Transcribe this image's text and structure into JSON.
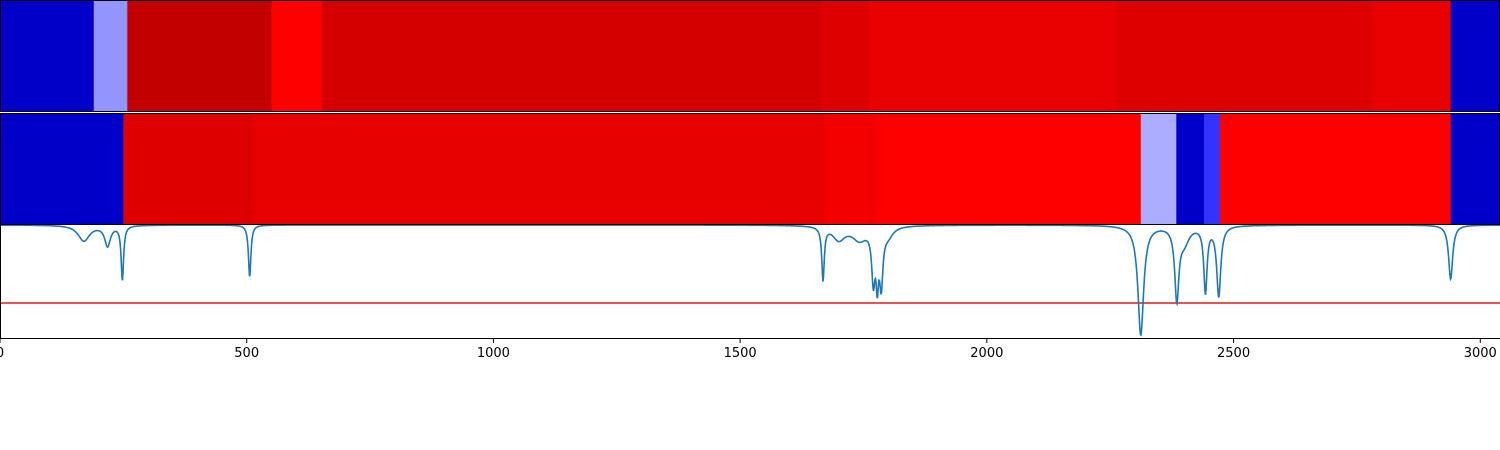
{
  "chart_data": [
    {
      "type": "heatmap",
      "xlim": [
        0,
        3040
      ],
      "colormap": "seismic",
      "value_range": [
        -1,
        1
      ],
      "segments": [
        {
          "x0": 0,
          "x1": 190,
          "value": -0.65
        },
        {
          "x0": 190,
          "x1": 258,
          "value": -0.21
        },
        {
          "x0": 258,
          "x1": 550,
          "value": 0.74
        },
        {
          "x0": 550,
          "x1": 652,
          "value": 0.5
        },
        {
          "x0": 652,
          "x1": 1665,
          "value": 0.67
        },
        {
          "x0": 1665,
          "x1": 1762,
          "value": 0.63
        },
        {
          "x0": 1762,
          "x1": 2262,
          "value": 0.59
        },
        {
          "x0": 2262,
          "x1": 2780,
          "value": 0.63
        },
        {
          "x0": 2780,
          "x1": 2940,
          "value": 0.59
        },
        {
          "x0": 2940,
          "x1": 3040,
          "value": -0.65
        }
      ]
    },
    {
      "type": "heatmap",
      "xlim": [
        0,
        3040
      ],
      "colormap": "seismic",
      "value_range": [
        -1,
        1
      ],
      "segments": [
        {
          "x0": 0,
          "x1": 250,
          "value": -0.65
        },
        {
          "x0": 250,
          "x1": 510,
          "value": 0.63
        },
        {
          "x0": 510,
          "x1": 1670,
          "value": 0.6
        },
        {
          "x0": 1670,
          "x1": 1775,
          "value": 0.55
        },
        {
          "x0": 1775,
          "x1": 1792,
          "value": 0.52
        },
        {
          "x0": 1792,
          "x1": 2312,
          "value": 0.5
        },
        {
          "x0": 2312,
          "x1": 2384,
          "value": -0.16
        },
        {
          "x0": 2384,
          "x1": 2440,
          "value": -0.65
        },
        {
          "x0": 2440,
          "x1": 2472,
          "value": -0.4
        },
        {
          "x0": 2472,
          "x1": 2940,
          "value": 0.5
        },
        {
          "x0": 2940,
          "x1": 3040,
          "value": -0.65
        }
      ]
    },
    {
      "type": "line",
      "xlim": [
        0,
        3040
      ],
      "ylim": [
        0,
        1
      ],
      "xticks": [
        0,
        500,
        1000,
        1500,
        2000,
        2500,
        3000
      ],
      "xtick_labels": [
        "0",
        "500",
        "1000",
        "1500",
        "2000",
        "2500",
        "3000"
      ],
      "series_color": "#1f77b4",
      "threshold": {
        "y": 0.31,
        "color": "#e41a1c"
      },
      "baseline": 1.0,
      "peaks": [
        {
          "x": 170,
          "depth": 0.14,
          "width": 14
        },
        {
          "x": 218,
          "depth": 0.18,
          "width": 7
        },
        {
          "x": 248,
          "depth": 0.48,
          "width": 3
        },
        {
          "x": 506,
          "depth": 0.46,
          "width": 3
        },
        {
          "x": 1668,
          "depth": 0.47,
          "width": 3
        },
        {
          "x": 1700,
          "depth": 0.12,
          "width": 15
        },
        {
          "x": 1742,
          "depth": 0.12,
          "width": 18
        },
        {
          "x": 1770,
          "depth": 0.45,
          "width": 4
        },
        {
          "x": 1778,
          "depth": 0.42,
          "width": 3
        },
        {
          "x": 1786,
          "depth": 0.48,
          "width": 4
        },
        {
          "x": 1800,
          "depth": 0.08,
          "width": 12
        },
        {
          "x": 2312,
          "depth": 0.97,
          "width": 7
        },
        {
          "x": 2385,
          "depth": 0.63,
          "width": 5
        },
        {
          "x": 2400,
          "depth": 0.14,
          "width": 12
        },
        {
          "x": 2443,
          "depth": 0.58,
          "width": 4
        },
        {
          "x": 2470,
          "depth": 0.62,
          "width": 5
        },
        {
          "x": 2940,
          "depth": 0.48,
          "width": 5
        }
      ]
    }
  ]
}
